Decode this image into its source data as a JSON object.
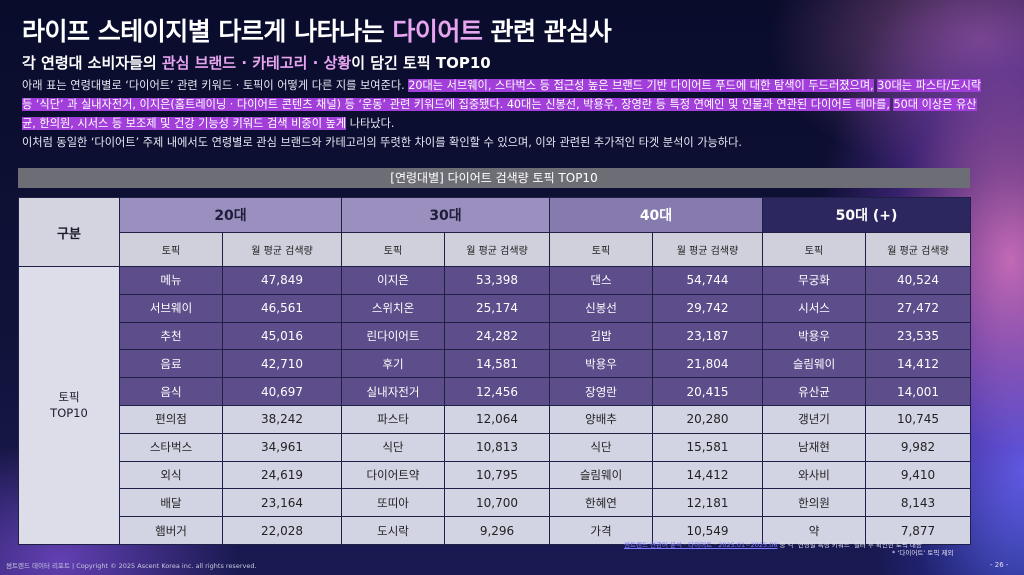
{
  "title": {
    "prefix": "라이프 스테이지별 다르게 나타나는 ",
    "highlight": "다이어트",
    "suffix": " 관련 관심사"
  },
  "subtitle": {
    "prefix": "각 연령대 소비자들의 ",
    "highlight": "관심 브랜드 · 카테고리 · 상황",
    "suffix": "이 담긴 토픽 TOP10"
  },
  "description": {
    "p1_plain": " 아래 표는 연령대별로 ‘다이어트’ 관련 키워드 · 토픽이 어떻게 다른 지를 보여준다. ",
    "p1_mark1": "20대는 서브웨이, 스타벅스 등 접근성 높은 브랜드 기반 다이어트 푸드에 대한 탐색이 두드러졌으며,",
    "p1_sep1": " ",
    "p1_mark2": "30대는 파스타/도시락 등 ‘식단’ 과 실내자전거, 이지은(홈트레이닝 · 다이어트 콘텐츠 채널) 등 ‘운동’ 관련 키워드에 집중됐다. 40대는 신봉선, 박용우, 장영란 등 특정 연예인 및 인물과 연관된 다이어트 테마를,",
    "p1_sep2": " ",
    "p1_mark3": "50대 이상은 유산균, 한의원, 시서스 등 보조제 및 건강 기능성 키워드 검색 비중이 높게",
    "p1_tail": " 나타났다.",
    "p2": " 이처럼 동일한 ‘다이어트’ 주제 내에서도 연령별로 관심 브랜드와 카테고리의 뚜렷한 차이를 확인할 수 있으며, 이와 관련된 추가적인 타겟 분석이 가능하다."
  },
  "table": {
    "caption": "[연령대별] 다이어트 검색량 토픽 TOP10",
    "row_header": "구분",
    "row_label_line1": "토픽",
    "row_label_line2": "TOP10",
    "groups": [
      "20대",
      "30대",
      "40대",
      "50대 (+)"
    ],
    "col_topic": "토픽",
    "col_volume": "월 평균 검색량",
    "rows": [
      [
        [
          "메뉴",
          "47,849"
        ],
        [
          "이지은",
          "53,398"
        ],
        [
          "댄스",
          "54,744"
        ],
        [
          "무궁화",
          "40,524"
        ]
      ],
      [
        [
          "서브웨이",
          "46,561"
        ],
        [
          "스위치온",
          "25,174"
        ],
        [
          "신봉선",
          "29,742"
        ],
        [
          "시서스",
          "27,472"
        ]
      ],
      [
        [
          "추천",
          "45,016"
        ],
        [
          "린다이어트",
          "24,282"
        ],
        [
          "김밥",
          "23,187"
        ],
        [
          "박용우",
          "23,535"
        ]
      ],
      [
        [
          "음료",
          "42,710"
        ],
        [
          "후기",
          "14,581"
        ],
        [
          "박용우",
          "21,804"
        ],
        [
          "슬림웨이",
          "14,412"
        ]
      ],
      [
        [
          "음식",
          "40,697"
        ],
        [
          "실내자전거",
          "12,456"
        ],
        [
          "장영란",
          "20,415"
        ],
        [
          "유산균",
          "14,001"
        ]
      ],
      [
        [
          "편의점",
          "38,242"
        ],
        [
          "파스타",
          "12,064"
        ],
        [
          "양배추",
          "20,280"
        ],
        [
          "갱년기",
          "10,745"
        ]
      ],
      [
        [
          "스타벅스",
          "34,961"
        ],
        [
          "식단",
          "10,813"
        ],
        [
          "식단",
          "15,581"
        ],
        [
          "남재현",
          "9,982"
        ]
      ],
      [
        [
          "외식",
          "24,619"
        ],
        [
          "다이어트약",
          "10,795"
        ],
        [
          "슬림웨이",
          "14,412"
        ],
        [
          "와사비",
          "9,410"
        ]
      ],
      [
        [
          "배달",
          "23,164"
        ],
        [
          "또띠아",
          "10,700"
        ],
        [
          "한혜연",
          "12,181"
        ],
        [
          "한의원",
          "8,143"
        ]
      ],
      [
        [
          "햄버거",
          "22,028"
        ],
        [
          "도시락",
          "9,296"
        ],
        [
          "가격",
          "10,549"
        ],
        [
          "약",
          "7,877"
        ]
      ]
    ]
  },
  "footer": {
    "left": "썸트렌드 데이터 리포트 | Copyright © 2025 Ascent Korea inc. all rights reserved.",
    "note_link": "썸트렌드 연관어 분석 · 다이어트 · 2025.01~2025.06",
    "note_line1": " 중 각 ‘연령별 특성 키워드’ 필터 후 확인한 토픽 내용",
    "note_line2": "* ‘다이어트’ 토픽 제외",
    "page": "- 26 -"
  }
}
